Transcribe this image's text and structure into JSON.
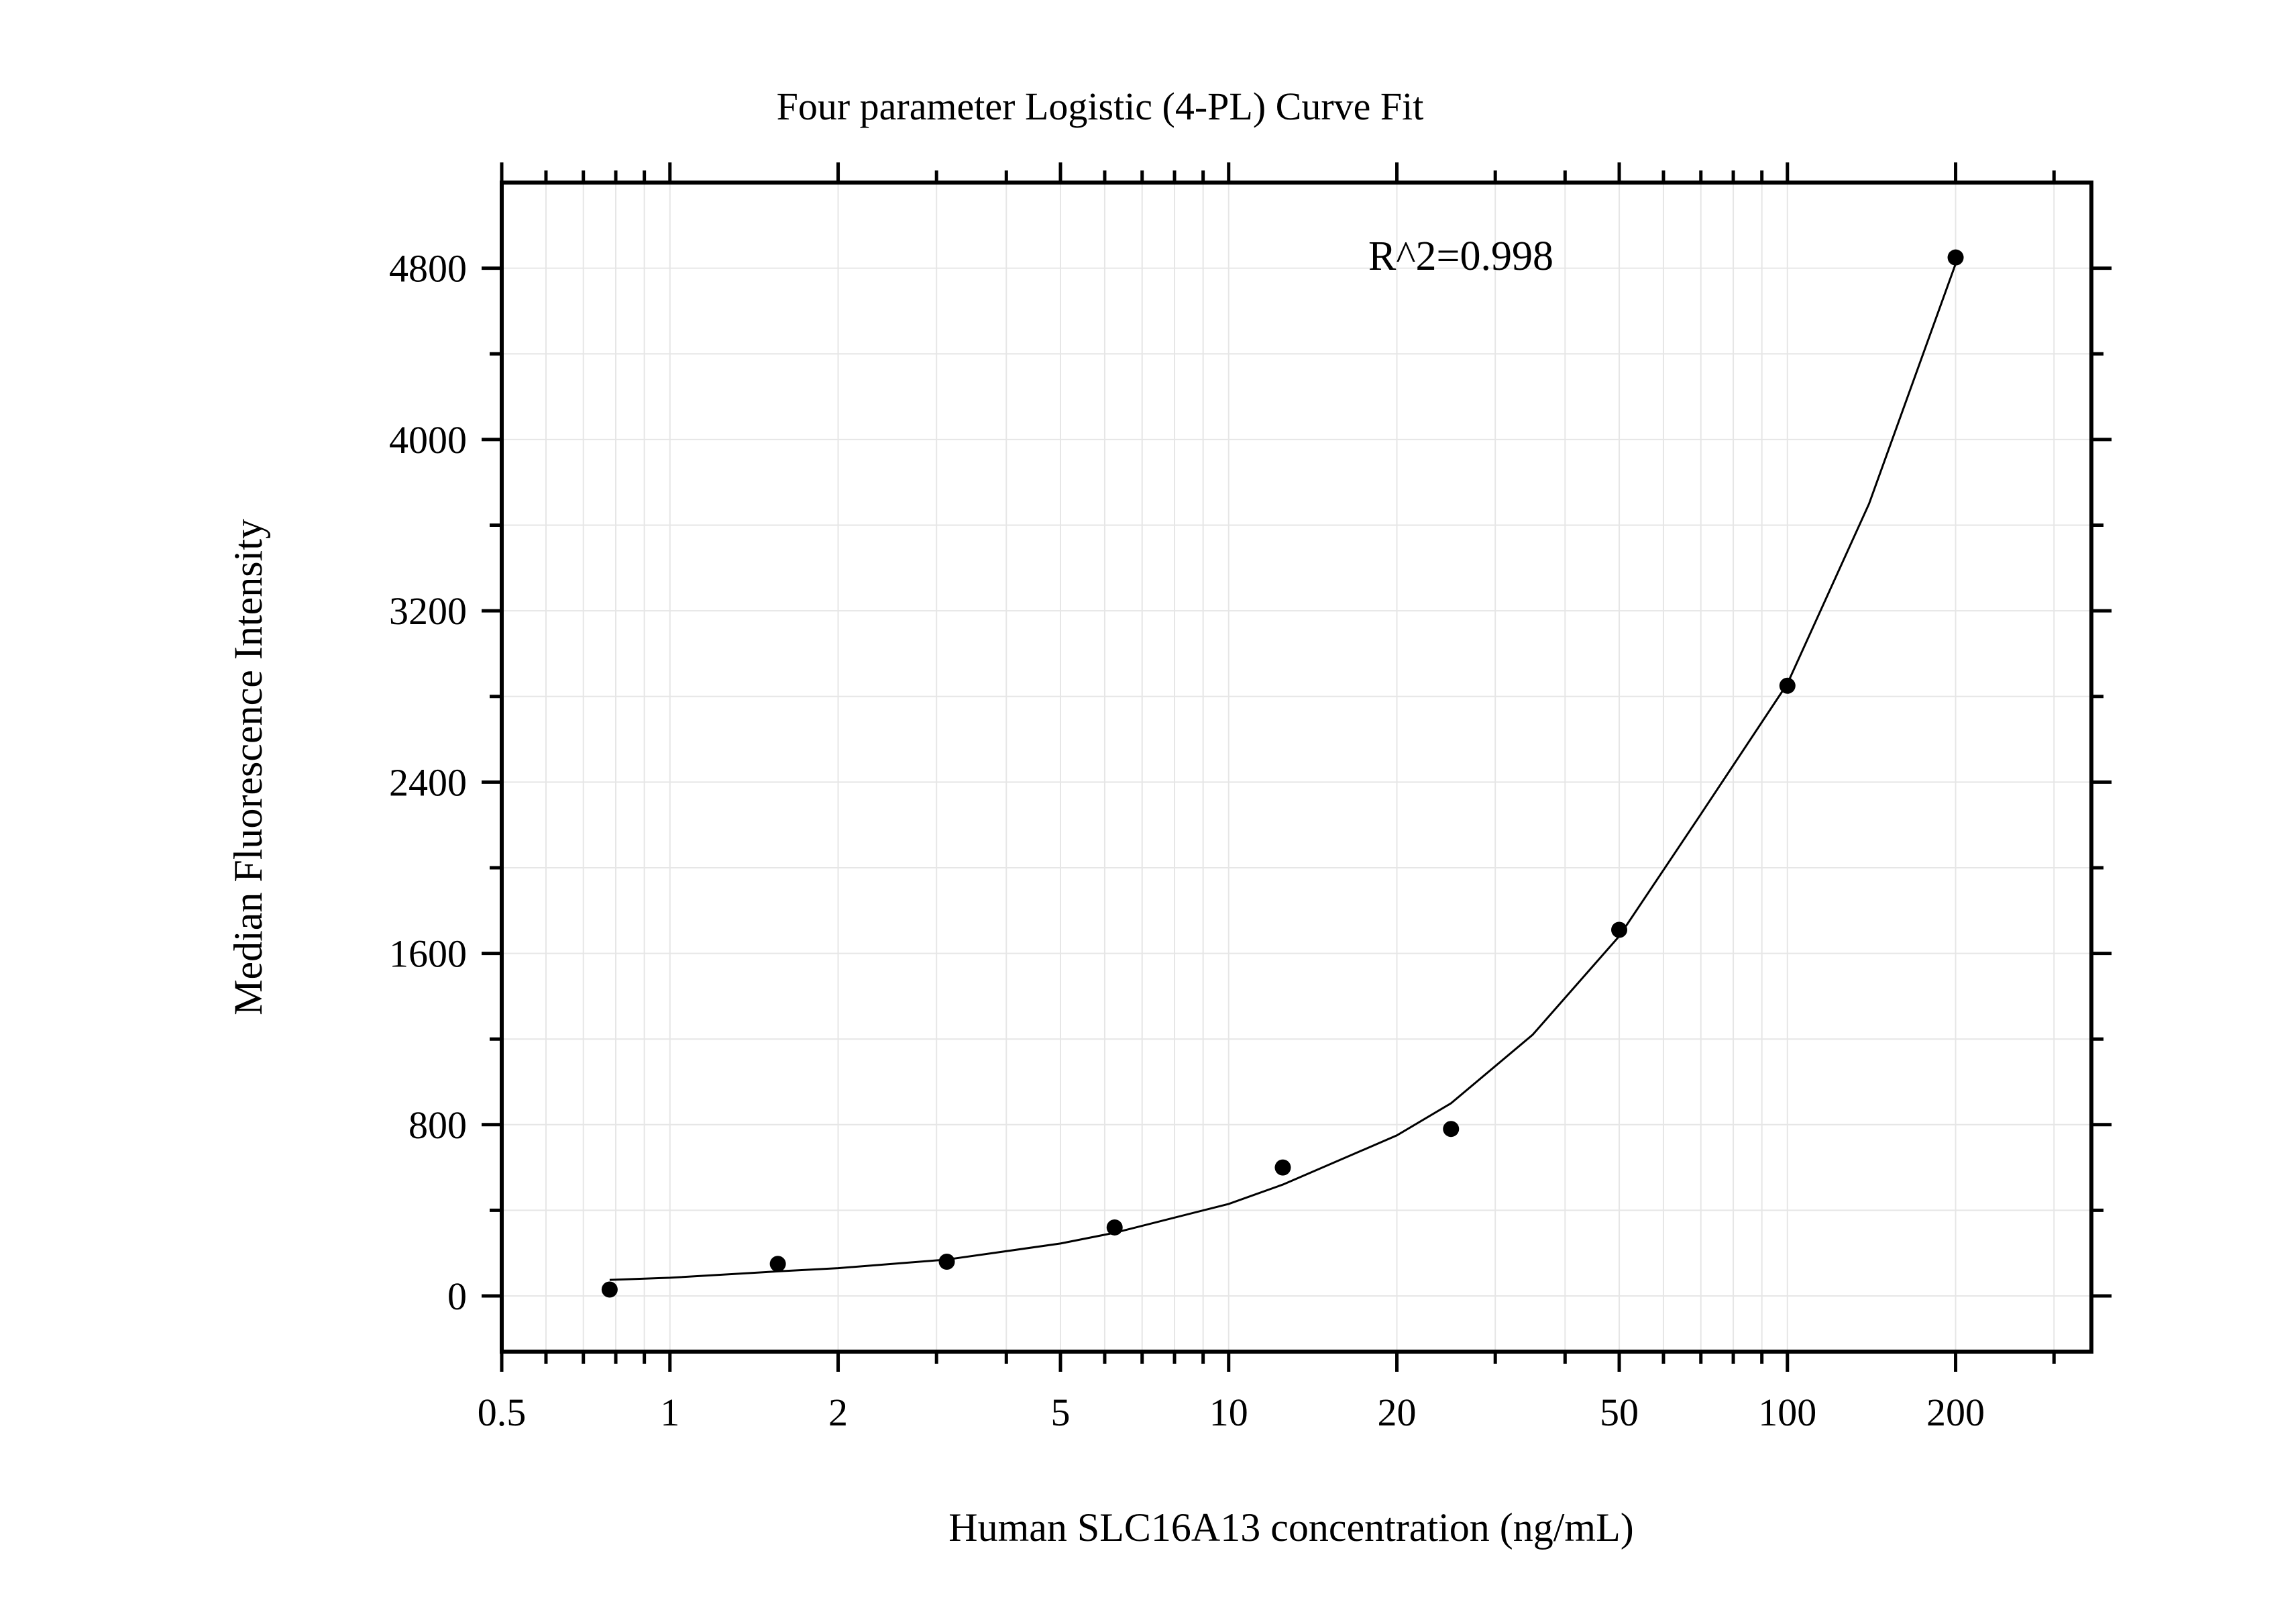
{
  "chart_data": {
    "type": "scatter",
    "title": "Four parameter Logistic (4-PL) Curve Fit",
    "xlabel": "Human SLC16A13 concentration (ng/mL)",
    "ylabel": "Median Fluorescence Intensity",
    "annotation": "R^2=0.998",
    "x_scale": "log",
    "xlim": [
      0.5,
      350
    ],
    "ylim": [
      -260,
      5200
    ],
    "x_ticks": [
      0.5,
      1,
      2,
      5,
      10,
      20,
      50,
      100,
      200
    ],
    "x_tick_labels": [
      "0.5",
      "1",
      "2",
      "5",
      "10",
      "20",
      "50",
      "100",
      "200"
    ],
    "y_ticks": [
      0,
      800,
      1600,
      2400,
      3200,
      4000,
      4800
    ],
    "y_tick_labels": [
      "0",
      "800",
      "1600",
      "2400",
      "3200",
      "4000",
      "4800"
    ],
    "grid": true,
    "points": {
      "x": [
        0.78,
        1.56,
        3.13,
        6.25,
        12.5,
        25,
        50,
        100,
        200
      ],
      "y": [
        30,
        150,
        160,
        320,
        600,
        780,
        1710,
        2850,
        4850
      ]
    },
    "fit_curve": {
      "model": "4PL",
      "x": [
        0.78,
        1.0,
        1.56,
        2.0,
        3.13,
        5.0,
        6.25,
        10,
        12.5,
        20,
        25,
        35,
        50,
        70,
        100,
        140,
        200
      ],
      "y": [
        75,
        85,
        115,
        130,
        170,
        245,
        295,
        430,
        520,
        750,
        900,
        1220,
        1680,
        2250,
        2860,
        3700,
        4820
      ]
    },
    "colors": {
      "axis": "#000000",
      "grid": "#e6e6e6",
      "points": "#000000",
      "curve": "#000000"
    }
  }
}
